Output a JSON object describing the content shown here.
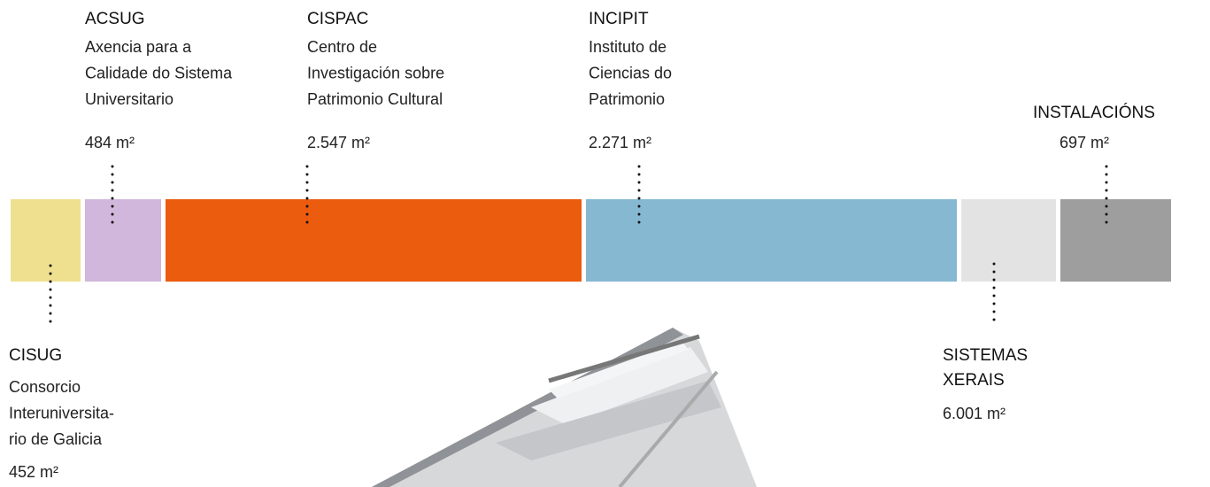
{
  "units": [
    {
      "name": [
        "CISUG"
      ],
      "description": [
        "Consorcio",
        "Interuniversita-",
        "rio de Galicia"
      ],
      "area": "452 m²"
    },
    {
      "name": [
        "ACSUG"
      ],
      "description": [
        "Axencia para a",
        "Calidade do Sistema",
        "Universitario"
      ],
      "area": "484 m²"
    },
    {
      "name": [
        "CISPAC"
      ],
      "description": [
        "Centro de",
        "Investigación sobre",
        "Patrimonio Cultural"
      ],
      "area": "2.547 m²"
    },
    {
      "name": [
        "INCIPIT"
      ],
      "description": [
        "Instituto de",
        "Ciencias do",
        "Patrimonio"
      ],
      "area": "2.271 m²"
    },
    {
      "name": [
        "SISTEMAS",
        "XERAIS"
      ],
      "description": [],
      "area": "6.001 m²"
    },
    {
      "name": [
        "INSTALACIÓNS"
      ],
      "description": [],
      "area": "697 m²"
    }
  ]
}
